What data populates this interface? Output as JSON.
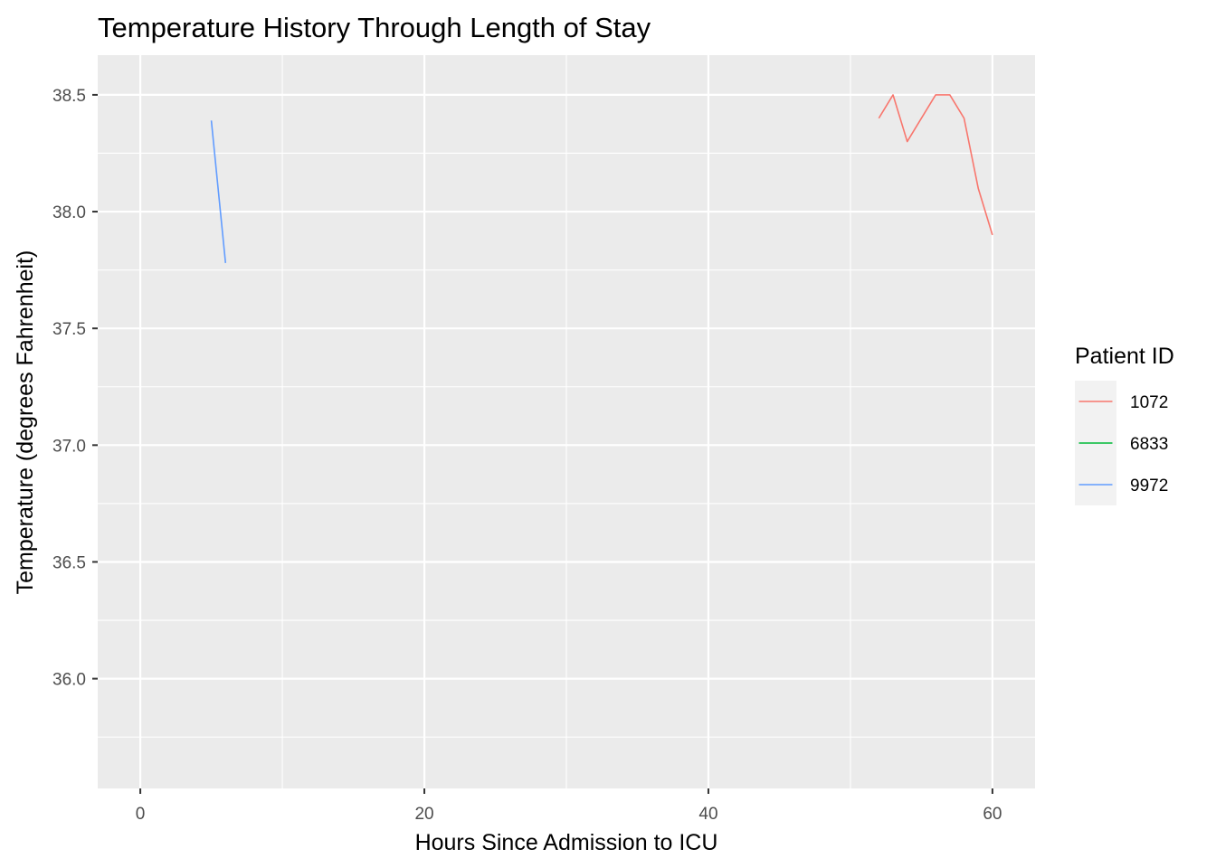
{
  "chart_data": {
    "type": "line",
    "title": "Temperature History Through Length of Stay",
    "xlabel": "Hours Since Admission to ICU",
    "ylabel": "Temperature (degrees Fahrenheit)",
    "xlim": [
      -3,
      63
    ],
    "ylim": [
      35.53,
      38.67
    ],
    "x_ticks": [
      0,
      20,
      40,
      60
    ],
    "x_tick_labels": [
      "0",
      "20",
      "40",
      "60"
    ],
    "y_ticks": [
      36.0,
      36.5,
      37.0,
      37.5,
      38.0,
      38.5
    ],
    "y_tick_labels": [
      "36.0",
      "36.5",
      "37.0",
      "37.5",
      "38.0",
      "38.5"
    ],
    "grid": true,
    "panel_background": "#EBEBEB",
    "legend": {
      "title": "Patient ID",
      "placement": "right"
    },
    "series": [
      {
        "name": "1072",
        "color": "#F8766D",
        "x": [
          52,
          53,
          54,
          56,
          57,
          58,
          59,
          60
        ],
        "y": [
          38.4,
          38.5,
          38.3,
          38.5,
          38.5,
          38.4,
          38.1,
          37.9
        ]
      },
      {
        "name": "6833",
        "color": "#00BA38",
        "x": [],
        "y": []
      },
      {
        "name": "9972",
        "color": "#619CFF",
        "x": [
          5,
          6
        ],
        "y": [
          38.39,
          37.78
        ]
      }
    ]
  }
}
